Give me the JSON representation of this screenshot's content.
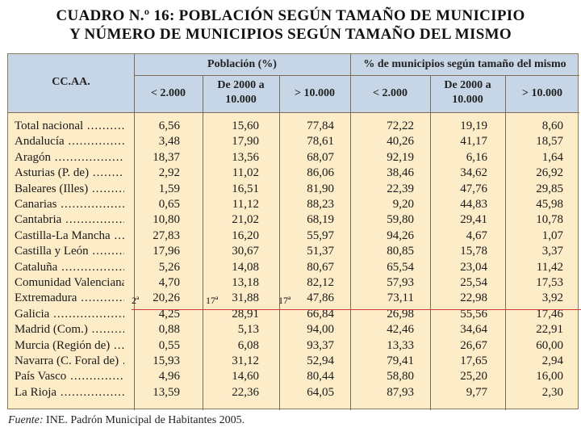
{
  "title": {
    "line1": "CUADRO N.º 16: POBLACIÓN SEGÚN TAMAÑO DE MUNICIPIO",
    "line2": "Y NÚMERO DE MUNICIPIOS SEGÚN TAMAÑO DEL MISMO"
  },
  "headers": {
    "ccaa": "CC.AA.",
    "poblacion": "Población (%)",
    "municipios": "% de municipios según tamaño del mismo",
    "col_lt2000": "< 2.000",
    "col_2000_l1": "De 2000 a",
    "col_2000_l2": "10.000",
    "col_gt10000": "> 10.000"
  },
  "rows": [
    {
      "name": "Total nacional",
      "v": [
        "6,56",
        "15,60",
        "77,84",
        "72,22",
        "19,19",
        "8,60"
      ]
    },
    {
      "name": "Andalucía",
      "v": [
        "3,48",
        "17,90",
        "78,61",
        "40,26",
        "41,17",
        "18,57"
      ]
    },
    {
      "name": "Aragón",
      "v": [
        "18,37",
        "13,56",
        "68,07",
        "92,19",
        "6,16",
        "1,64"
      ]
    },
    {
      "name": "Asturias (P. de)",
      "v": [
        "2,92",
        "11,02",
        "86,06",
        "38,46",
        "34,62",
        "26,92"
      ]
    },
    {
      "name": "Baleares (Illes)",
      "v": [
        "1,59",
        "16,51",
        "81,90",
        "22,39",
        "47,76",
        "29,85"
      ]
    },
    {
      "name": "Canarias",
      "v": [
        "0,65",
        "11,12",
        "88,23",
        "9,20",
        "44,83",
        "45,98"
      ]
    },
    {
      "name": "Cantabria",
      "v": [
        "10,80",
        "21,02",
        "68,19",
        "59,80",
        "29,41",
        "10,78"
      ]
    },
    {
      "name": "Castilla-La Mancha",
      "v": [
        "27,83",
        "16,20",
        "55,97",
        "94,26",
        "4,67",
        "1,07"
      ]
    },
    {
      "name": "Castilla y León",
      "v": [
        "17,96",
        "30,67",
        "51,37",
        "80,85",
        "15,78",
        "3,37"
      ]
    },
    {
      "name": "Cataluña",
      "v": [
        "5,26",
        "14,08",
        "80,67",
        "65,54",
        "23,04",
        "11,42"
      ]
    },
    {
      "name": "Comunidad Valenciana",
      "v": [
        "4,70",
        "13,18",
        "82,12",
        "57,93",
        "25,54",
        "17,53"
      ]
    },
    {
      "name": "Extremadura",
      "v": [
        "20,26",
        "31,88",
        "47,86",
        "73,11",
        "22,98",
        "3,92"
      ]
    },
    {
      "name": "Galicia",
      "v": [
        "4,25",
        "28,91",
        "66,84",
        "26,98",
        "55,56",
        "17,46"
      ]
    },
    {
      "name": "Madrid (Com.)",
      "v": [
        "0,88",
        "5,13",
        "94,00",
        "42,46",
        "34,64",
        "22,91"
      ]
    },
    {
      "name": "Murcia (Región de)",
      "v": [
        "0,55",
        "6,08",
        "93,37",
        "13,33",
        "26,67",
        "60,00"
      ]
    },
    {
      "name": "Navarra (C. Foral de)",
      "v": [
        "15,93",
        "31,12",
        "52,94",
        "79,41",
        "17,65",
        "2,94"
      ]
    },
    {
      "name": "País Vasco",
      "v": [
        "4,96",
        "14,60",
        "80,44",
        "58,80",
        "25,20",
        "16,00"
      ]
    },
    {
      "name": "La Rioja",
      "v": [
        "13,59",
        "22,36",
        "64,05",
        "87,93",
        "9,77",
        "2,30"
      ]
    }
  ],
  "annotations": {
    "mark_a": "2ª",
    "mark_b": "17ª",
    "mark_c": "17ª"
  },
  "source": {
    "label": "Fuente:",
    "text": "INE. Padrón Municipal de Habitantes 2005."
  }
}
